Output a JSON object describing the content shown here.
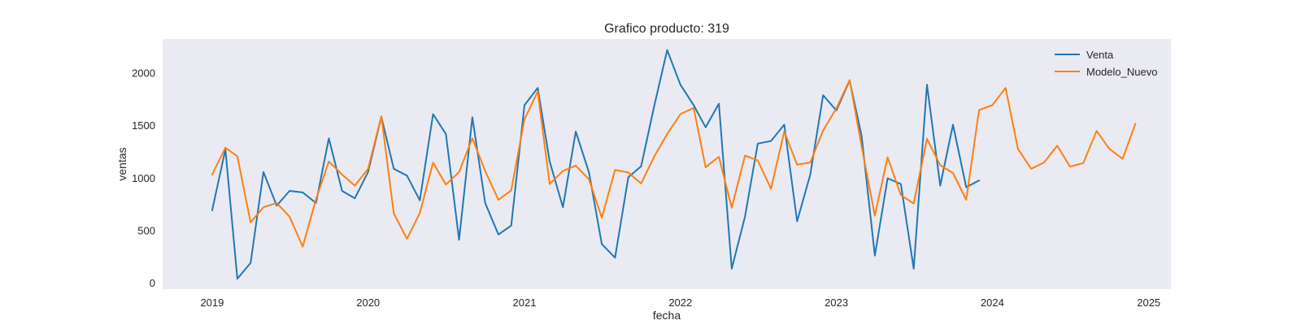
{
  "chart_data": {
    "type": "line",
    "title": "Grafico producto: 319",
    "xlabel": "fecha",
    "ylabel": "ventas",
    "x_type": "date-monthly",
    "xlim": [
      "2018-09-07",
      "2025-02-22"
    ],
    "ylim": [
      -60,
      2320
    ],
    "x_ticks": [
      {
        "date": "2019-01-01",
        "label": "2019"
      },
      {
        "date": "2020-01-01",
        "label": "2020"
      },
      {
        "date": "2021-01-01",
        "label": "2021"
      },
      {
        "date": "2022-01-01",
        "label": "2022"
      },
      {
        "date": "2023-01-01",
        "label": "2023"
      },
      {
        "date": "2024-01-01",
        "label": "2024"
      },
      {
        "date": "2025-01-01",
        "label": "2025"
      }
    ],
    "y_ticks": [
      {
        "value": 0,
        "label": "0"
      },
      {
        "value": 500,
        "label": "500"
      },
      {
        "value": 1000,
        "label": "1000"
      },
      {
        "value": 1500,
        "label": "1500"
      },
      {
        "value": 2000,
        "label": "2000"
      }
    ],
    "grid": false,
    "background": "#eaeaf2",
    "legend_position": "top-right",
    "series": [
      {
        "name": "Venta",
        "color": "#1f77b4",
        "start": "2019-01-01",
        "values": [
          690,
          1270,
          40,
          190,
          1055,
          735,
          875,
          860,
          760,
          1375,
          875,
          805,
          1055,
          1580,
          1085,
          1020,
          785,
          1605,
          1415,
          410,
          1575,
          760,
          460,
          545,
          1690,
          1855,
          1155,
          720,
          1440,
          1050,
          370,
          240,
          1005,
          1110,
          1690,
          2215,
          1885,
          1690,
          1480,
          1705,
          135,
          630,
          1325,
          1350,
          1505,
          585,
          1030,
          1785,
          1640,
          1925,
          1400,
          260,
          995,
          940,
          135,
          1885,
          925,
          1505,
          910,
          975
        ]
      },
      {
        "name": "Modelo_Nuevo",
        "color": "#ff7f0e",
        "start": "2019-01-01",
        "values": [
          1030,
          1285,
          1205,
          575,
          720,
          760,
          630,
          345,
          795,
          1155,
          1030,
          925,
          1085,
          1585,
          660,
          420,
          665,
          1145,
          935,
          1055,
          1375,
          1065,
          790,
          880,
          1555,
          1820,
          940,
          1065,
          1115,
          985,
          620,
          1075,
          1050,
          945,
          1205,
          1415,
          1605,
          1665,
          1100,
          1200,
          715,
          1210,
          1165,
          895,
          1440,
          1125,
          1145,
          1450,
          1660,
          1930,
          1300,
          640,
          1195,
          835,
          755,
          1370,
          1120,
          1045,
          790,
          1645,
          1690,
          1855,
          1275,
          1085,
          1145,
          1305,
          1105,
          1140,
          1445,
          1275,
          1180,
          1515
        ]
      }
    ]
  }
}
